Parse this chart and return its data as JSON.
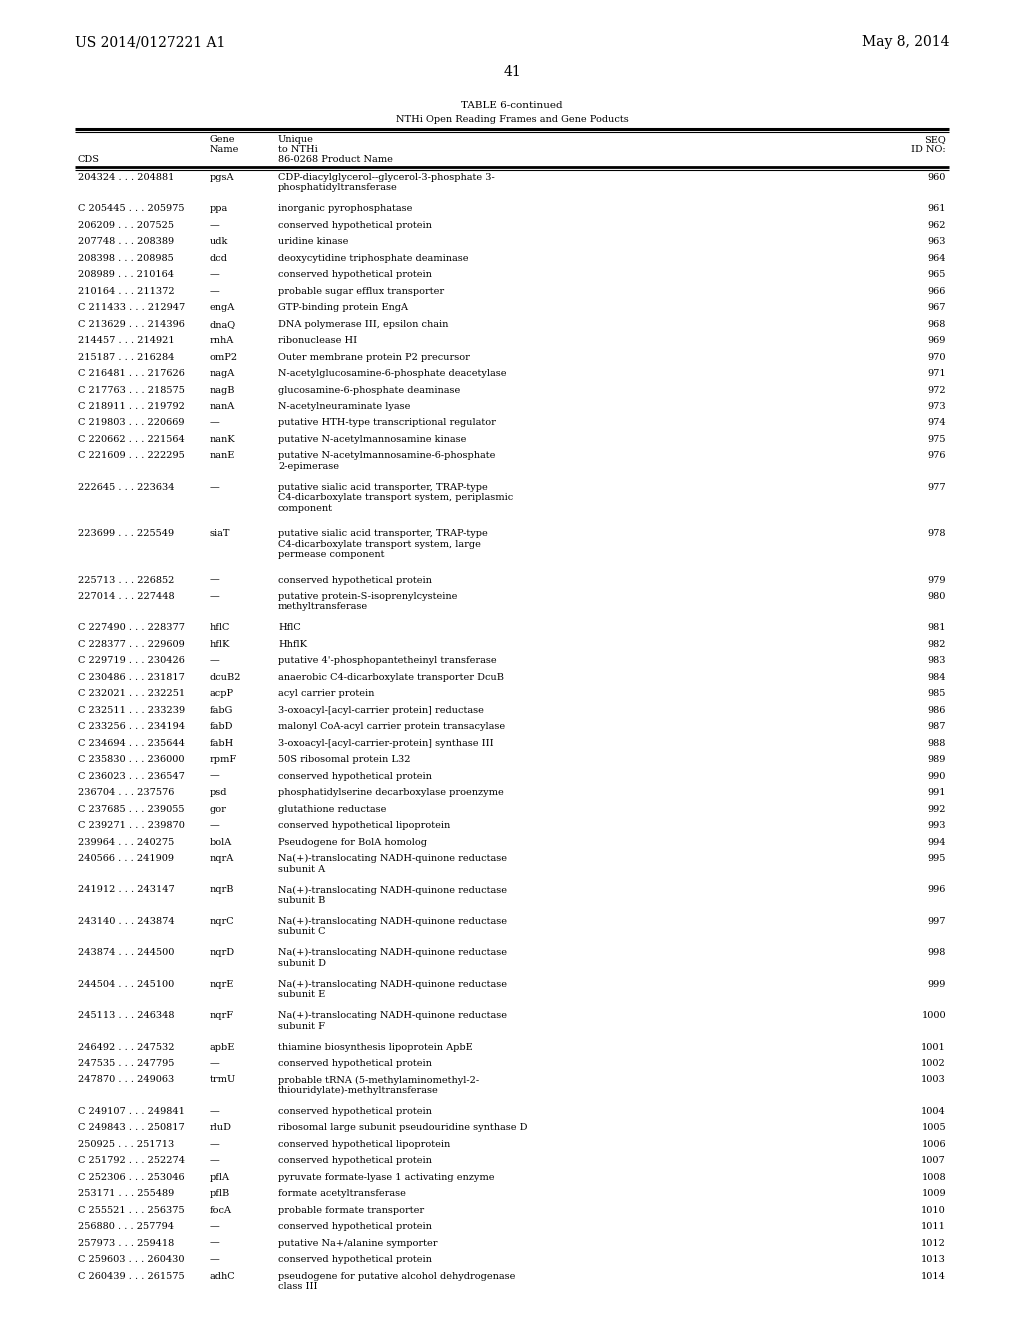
{
  "header_left": "US 2014/0127221 A1",
  "header_right": "May 8, 2014",
  "page_number": "41",
  "table_title": "TABLE 6-continued",
  "table_subtitle": "NTHi Open Reading Frames and Gene Poducts",
  "col_headers": {
    "cds": "CDS",
    "gene_line1": "Gene",
    "gene_line2": "Name",
    "unique_line1": "Unique",
    "unique_line2": "to NTHi",
    "unique_line3": "86-0268 Product Name",
    "seq_line1": "SEQ",
    "seq_line2": "ID NO:"
  },
  "rows": [
    [
      "204324 . . . 204881",
      "pgsA",
      "CDP-diacylglycerol--glycerol-3-phosphate 3-\nphosphatidyltransferase",
      "960"
    ],
    [
      "C 205445 . . . 205975",
      "ppa",
      "inorganic pyrophosphatase",
      "961"
    ],
    [
      "206209 . . . 207525",
      "—",
      "conserved hypothetical protein",
      "962"
    ],
    [
      "207748 . . . 208389",
      "udk",
      "uridine kinase",
      "963"
    ],
    [
      "208398 . . . 208985",
      "dcd",
      "deoxycytidine triphosphate deaminase",
      "964"
    ],
    [
      "208989 . . . 210164",
      "—",
      "conserved hypothetical protein",
      "965"
    ],
    [
      "210164 . . . 211372",
      "—",
      "probable sugar efflux transporter",
      "966"
    ],
    [
      "C 211433 . . . 212947",
      "engA",
      "GTP-binding protein EngA",
      "967"
    ],
    [
      "C 213629 . . . 214396",
      "dnaQ",
      "DNA polymerase III, epsilon chain",
      "968"
    ],
    [
      "214457 . . . 214921",
      "rnhA",
      "ribonuclease HI",
      "969"
    ],
    [
      "215187 . . . 216284",
      "omP2",
      "Outer membrane protein P2 precursor",
      "970"
    ],
    [
      "C 216481 . . . 217626",
      "nagA",
      "N-acetylglucosamine-6-phosphate deacetylase",
      "971"
    ],
    [
      "C 217763 . . . 218575",
      "nagB",
      "glucosamine-6-phosphate deaminase",
      "972"
    ],
    [
      "C 218911 . . . 219792",
      "nanA",
      "N-acetylneuraminate lyase",
      "973"
    ],
    [
      "C 219803 . . . 220669",
      "—",
      "putative HTH-type transcriptional regulator",
      "974"
    ],
    [
      "C 220662 . . . 221564",
      "nanK",
      "putative N-acetylmannosamine kinase",
      "975"
    ],
    [
      "C 221609 . . . 222295",
      "nanE",
      "putative N-acetylmannosamine-6-phosphate\n2-epimerase",
      "976"
    ],
    [
      "222645 . . . 223634",
      "—",
      "putative sialic acid transporter, TRAP-type\nC4-dicarboxylate transport system, periplasmic\ncomponent",
      "977"
    ],
    [
      "223699 . . . 225549",
      "siaT",
      "putative sialic acid transporter, TRAP-type\nC4-dicarboxylate transport system, large\npermease component",
      "978"
    ],
    [
      "225713 . . . 226852",
      "—",
      "conserved hypothetical protein",
      "979"
    ],
    [
      "227014 . . . 227448",
      "—",
      "putative protein-S-isoprenylcysteine\nmethyltransferase",
      "980"
    ],
    [
      "C 227490 . . . 228377",
      "hflC",
      "HflC",
      "981"
    ],
    [
      "C 228377 . . . 229609",
      "hflK",
      "HhflK",
      "982"
    ],
    [
      "C 229719 . . . 230426",
      "—",
      "putative 4'-phosphopantetheinyl transferase",
      "983"
    ],
    [
      "C 230486 . . . 231817",
      "dcuB2",
      "anaerobic C4-dicarboxylate transporter DcuB",
      "984"
    ],
    [
      "C 232021 . . . 232251",
      "acpP",
      "acyl carrier protein",
      "985"
    ],
    [
      "C 232511 . . . 233239",
      "fabG",
      "3-oxoacyl-[acyl-carrier protein] reductase",
      "986"
    ],
    [
      "C 233256 . . . 234194",
      "fabD",
      "malonyl CoA-acyl carrier protein transacylase",
      "987"
    ],
    [
      "C 234694 . . . 235644",
      "fabH",
      "3-oxoacyl-[acyl-carrier-protein] synthase III",
      "988"
    ],
    [
      "C 235830 . . . 236000",
      "rpmF",
      "50S ribosomal protein L32",
      "989"
    ],
    [
      "C 236023 . . . 236547",
      "—",
      "conserved hypothetical protein",
      "990"
    ],
    [
      "236704 . . . 237576",
      "psd",
      "phosphatidylserine decarboxylase proenzyme",
      "991"
    ],
    [
      "C 237685 . . . 239055",
      "gor",
      "glutathione reductase",
      "992"
    ],
    [
      "C 239271 . . . 239870",
      "—",
      "conserved hypothetical lipoprotein",
      "993"
    ],
    [
      "239964 . . . 240275",
      "bolA",
      "Pseudogene for BolA homolog",
      "994"
    ],
    [
      "240566 . . . 241909",
      "nqrA",
      "Na(+)-translocating NADH-quinone reductase\nsubunit A",
      "995"
    ],
    [
      "241912 . . . 243147",
      "nqrB",
      "Na(+)-translocating NADH-quinone reductase\nsubunit B",
      "996"
    ],
    [
      "243140 . . . 243874",
      "nqrC",
      "Na(+)-translocating NADH-quinone reductase\nsubunit C",
      "997"
    ],
    [
      "243874 . . . 244500",
      "nqrD",
      "Na(+)-translocating NADH-quinone reductase\nsubunit D",
      "998"
    ],
    [
      "244504 . . . 245100",
      "nqrE",
      "Na(+)-translocating NADH-quinone reductase\nsubunit E",
      "999"
    ],
    [
      "245113 . . . 246348",
      "nqrF",
      "Na(+)-translocating NADH-quinone reductase\nsubunit F",
      "1000"
    ],
    [
      "246492 . . . 247532",
      "apbE",
      "thiamine biosynthesis lipoprotein ApbE",
      "1001"
    ],
    [
      "247535 . . . 247795",
      "—",
      "conserved hypothetical protein",
      "1002"
    ],
    [
      "247870 . . . 249063",
      "trmU",
      "probable tRNA (5-methylaminomethyl-2-\nthiouridylate)-methyltransferase",
      "1003"
    ],
    [
      "C 249107 . . . 249841",
      "—",
      "conserved hypothetical protein",
      "1004"
    ],
    [
      "C 249843 . . . 250817",
      "rluD",
      "ribosomal large subunit pseudouridine synthase D",
      "1005"
    ],
    [
      "250925 . . . 251713",
      "—",
      "conserved hypothetical lipoprotein",
      "1006"
    ],
    [
      "C 251792 . . . 252274",
      "—",
      "conserved hypothetical protein",
      "1007"
    ],
    [
      "C 252306 . . . 253046",
      "pflA",
      "pyruvate formate-lyase 1 activating enzyme",
      "1008"
    ],
    [
      "253171 . . . 255489",
      "pflB",
      "formate acetyltransferase",
      "1009"
    ],
    [
      "C 255521 . . . 256375",
      "focA",
      "probable formate transporter",
      "1010"
    ],
    [
      "256880 . . . 257794",
      "—",
      "conserved hypothetical protein",
      "1011"
    ],
    [
      "257973 . . . 259418",
      "—",
      "putative Na+/alanine symporter",
      "1012"
    ],
    [
      "C 259603 . . . 260430",
      "—",
      "conserved hypothetical protein",
      "1013"
    ],
    [
      "C 260439 . . . 261575",
      "adhC",
      "pseudogene for putative alcohol dehydrogenase\nclass III",
      "1014"
    ]
  ],
  "bg_color": "#ffffff",
  "text_color": "#000000",
  "font_size": 7.0,
  "header_font_size": 10.0,
  "page_num_font_size": 10.0
}
